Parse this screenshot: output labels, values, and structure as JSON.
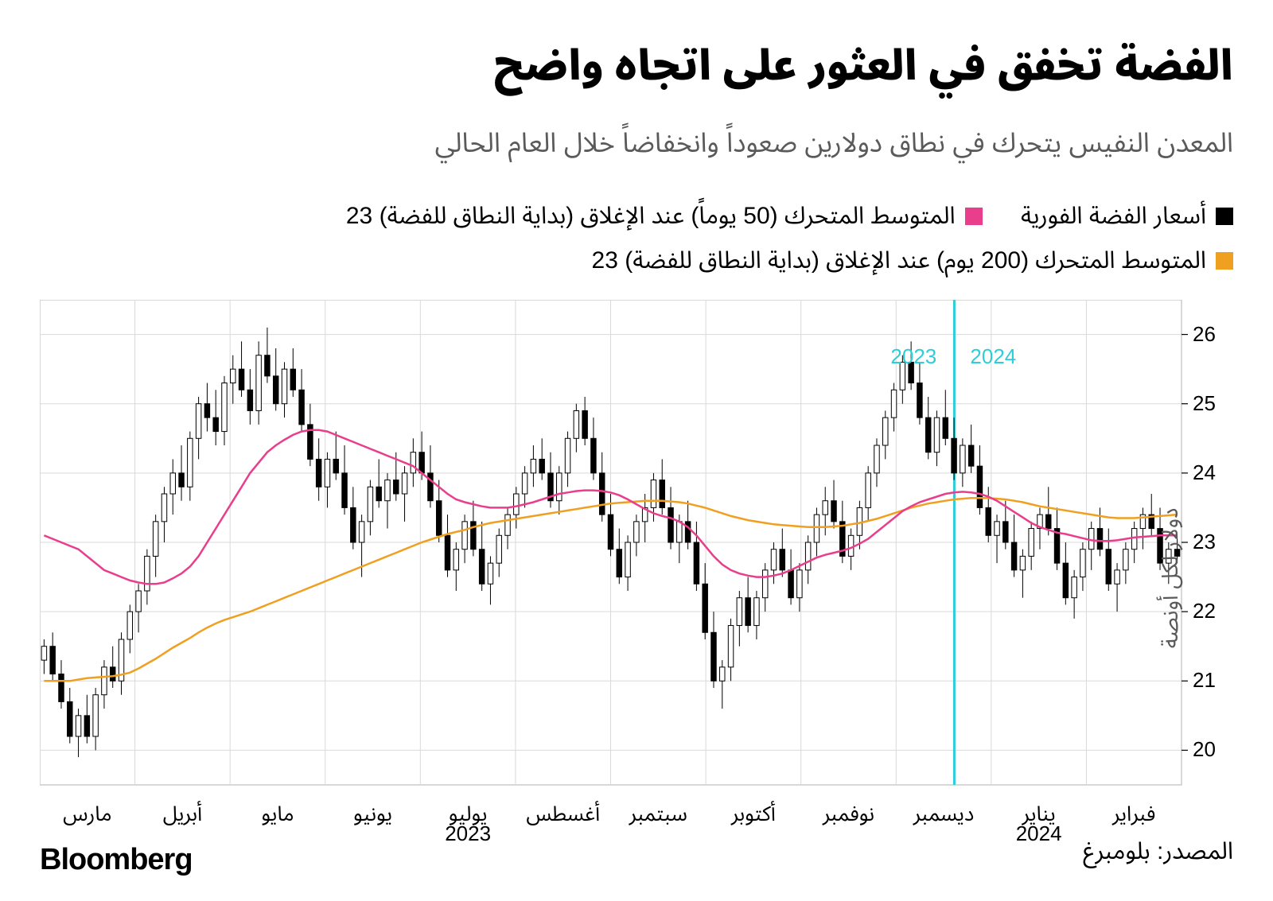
{
  "title": "الفضة تخفق في العثور على اتجاه واضح",
  "subtitle": "المعدن النفيس يتحرك في نطاق دولارين صعوداً وانخفاضاً خلال العام الحالي",
  "legend": {
    "spot": {
      "label": "أسعار الفضة الفورية",
      "color": "#000000"
    },
    "ma50": {
      "label": "المتوسط المتحرك (50 يوماً) عند الإغلاق (بداية النطاق للفضة) 23",
      "color": "#e83e8c"
    },
    "ma200": {
      "label": "المتوسط المتحرك (200 يوم) عند الإغلاق (بداية النطاق للفضة) 23",
      "color": "#f0a020"
    }
  },
  "chart": {
    "type": "candlestick",
    "y_axis": {
      "label": "دولار لكل أونصة",
      "min": 19.5,
      "max": 26.5,
      "ticks": [
        20,
        21,
        22,
        23,
        24,
        25,
        26
      ]
    },
    "x_axis": {
      "months": [
        "مارس",
        "أبريل",
        "مايو",
        "يونيو",
        "يوليو",
        "أغسطس",
        "سبتمبر",
        "أكتوبر",
        "نوفمبر",
        "ديسمبر",
        "يناير",
        "فبراير"
      ],
      "year_labels": {
        "2023": 4,
        "2024": 10
      },
      "year_divider_position": 0.801,
      "year_marker_2023": "2023",
      "year_marker_2024": "2024",
      "year_marker_color": "#2dcdd9"
    },
    "colors": {
      "grid": "#d9d9d9",
      "border": "#bfbfbf",
      "candle": "#000000",
      "ma50": "#e83e8c",
      "ma200": "#f0a020",
      "divider": "#2dcdd9",
      "background": "#ffffff"
    },
    "candles": [
      {
        "o": 21.3,
        "h": 21.6,
        "l": 21.1,
        "c": 21.5
      },
      {
        "o": 21.5,
        "h": 21.7,
        "l": 21.0,
        "c": 21.1
      },
      {
        "o": 21.1,
        "h": 21.3,
        "l": 20.6,
        "c": 20.7
      },
      {
        "o": 20.7,
        "h": 20.9,
        "l": 20.1,
        "c": 20.2
      },
      {
        "o": 20.2,
        "h": 20.6,
        "l": 19.9,
        "c": 20.5
      },
      {
        "o": 20.5,
        "h": 20.8,
        "l": 20.1,
        "c": 20.2
      },
      {
        "o": 20.2,
        "h": 20.9,
        "l": 20.0,
        "c": 20.8
      },
      {
        "o": 20.8,
        "h": 21.3,
        "l": 20.6,
        "c": 21.2
      },
      {
        "o": 21.2,
        "h": 21.5,
        "l": 20.9,
        "c": 21.0
      },
      {
        "o": 21.0,
        "h": 21.7,
        "l": 20.8,
        "c": 21.6
      },
      {
        "o": 21.6,
        "h": 22.1,
        "l": 21.4,
        "c": 22.0
      },
      {
        "o": 22.0,
        "h": 22.4,
        "l": 21.7,
        "c": 22.3
      },
      {
        "o": 22.3,
        "h": 22.9,
        "l": 22.1,
        "c": 22.8
      },
      {
        "o": 22.8,
        "h": 23.4,
        "l": 22.5,
        "c": 23.3
      },
      {
        "o": 23.3,
        "h": 23.8,
        "l": 23.0,
        "c": 23.7
      },
      {
        "o": 23.7,
        "h": 24.2,
        "l": 23.4,
        "c": 24.0
      },
      {
        "o": 24.0,
        "h": 24.4,
        "l": 23.6,
        "c": 23.8
      },
      {
        "o": 23.8,
        "h": 24.6,
        "l": 23.6,
        "c": 24.5
      },
      {
        "o": 24.5,
        "h": 25.1,
        "l": 24.2,
        "c": 25.0
      },
      {
        "o": 25.0,
        "h": 25.3,
        "l": 24.6,
        "c": 24.8
      },
      {
        "o": 24.8,
        "h": 25.2,
        "l": 24.4,
        "c": 24.6
      },
      {
        "o": 24.6,
        "h": 25.4,
        "l": 24.4,
        "c": 25.3
      },
      {
        "o": 25.3,
        "h": 25.7,
        "l": 25.0,
        "c": 25.5
      },
      {
        "o": 25.5,
        "h": 25.9,
        "l": 25.1,
        "c": 25.2
      },
      {
        "o": 25.2,
        "h": 25.5,
        "l": 24.7,
        "c": 24.9
      },
      {
        "o": 24.9,
        "h": 25.9,
        "l": 24.7,
        "c": 25.7
      },
      {
        "o": 25.7,
        "h": 26.1,
        "l": 25.3,
        "c": 25.4
      },
      {
        "o": 25.4,
        "h": 25.8,
        "l": 24.9,
        "c": 25.0
      },
      {
        "o": 25.0,
        "h": 25.6,
        "l": 24.8,
        "c": 25.5
      },
      {
        "o": 25.5,
        "h": 25.8,
        "l": 25.1,
        "c": 25.2
      },
      {
        "o": 25.2,
        "h": 25.5,
        "l": 24.6,
        "c": 24.7
      },
      {
        "o": 24.7,
        "h": 25.0,
        "l": 24.1,
        "c": 24.2
      },
      {
        "o": 24.2,
        "h": 24.5,
        "l": 23.6,
        "c": 23.8
      },
      {
        "o": 23.8,
        "h": 24.3,
        "l": 23.5,
        "c": 24.2
      },
      {
        "o": 24.2,
        "h": 24.6,
        "l": 23.9,
        "c": 24.0
      },
      {
        "o": 24.0,
        "h": 24.4,
        "l": 23.4,
        "c": 23.5
      },
      {
        "o": 23.5,
        "h": 23.8,
        "l": 22.9,
        "c": 23.0
      },
      {
        "o": 23.0,
        "h": 23.4,
        "l": 22.5,
        "c": 23.3
      },
      {
        "o": 23.3,
        "h": 23.9,
        "l": 23.1,
        "c": 23.8
      },
      {
        "o": 23.8,
        "h": 24.2,
        "l": 23.5,
        "c": 23.6
      },
      {
        "o": 23.6,
        "h": 24.0,
        "l": 23.2,
        "c": 23.9
      },
      {
        "o": 23.9,
        "h": 24.3,
        "l": 23.6,
        "c": 23.7
      },
      {
        "o": 23.7,
        "h": 24.1,
        "l": 23.3,
        "c": 24.0
      },
      {
        "o": 24.0,
        "h": 24.5,
        "l": 23.8,
        "c": 24.3
      },
      {
        "o": 24.3,
        "h": 24.6,
        "l": 23.9,
        "c": 24.0
      },
      {
        "o": 24.0,
        "h": 24.4,
        "l": 23.5,
        "c": 23.6
      },
      {
        "o": 23.6,
        "h": 23.9,
        "l": 23.0,
        "c": 23.1
      },
      {
        "o": 23.1,
        "h": 23.4,
        "l": 22.5,
        "c": 22.6
      },
      {
        "o": 22.6,
        "h": 23.0,
        "l": 22.3,
        "c": 22.9
      },
      {
        "o": 22.9,
        "h": 23.4,
        "l": 22.7,
        "c": 23.3
      },
      {
        "o": 23.3,
        "h": 23.6,
        "l": 22.8,
        "c": 22.9
      },
      {
        "o": 22.9,
        "h": 23.3,
        "l": 22.3,
        "c": 22.4
      },
      {
        "o": 22.4,
        "h": 22.8,
        "l": 22.1,
        "c": 22.7
      },
      {
        "o": 22.7,
        "h": 23.2,
        "l": 22.5,
        "c": 23.1
      },
      {
        "o": 23.1,
        "h": 23.5,
        "l": 22.9,
        "c": 23.4
      },
      {
        "o": 23.4,
        "h": 23.8,
        "l": 23.2,
        "c": 23.7
      },
      {
        "o": 23.7,
        "h": 24.1,
        "l": 23.5,
        "c": 24.0
      },
      {
        "o": 24.0,
        "h": 24.4,
        "l": 23.8,
        "c": 24.2
      },
      {
        "o": 24.2,
        "h": 24.5,
        "l": 23.9,
        "c": 24.0
      },
      {
        "o": 24.0,
        "h": 24.3,
        "l": 23.5,
        "c": 23.6
      },
      {
        "o": 23.6,
        "h": 24.1,
        "l": 23.4,
        "c": 24.0
      },
      {
        "o": 24.0,
        "h": 24.6,
        "l": 23.8,
        "c": 24.5
      },
      {
        "o": 24.5,
        "h": 25.0,
        "l": 24.3,
        "c": 24.9
      },
      {
        "o": 24.9,
        "h": 25.1,
        "l": 24.4,
        "c": 24.5
      },
      {
        "o": 24.5,
        "h": 24.8,
        "l": 23.9,
        "c": 24.0
      },
      {
        "o": 24.0,
        "h": 24.3,
        "l": 23.3,
        "c": 23.4
      },
      {
        "o": 23.4,
        "h": 23.7,
        "l": 22.8,
        "c": 22.9
      },
      {
        "o": 22.9,
        "h": 23.2,
        "l": 22.4,
        "c": 22.5
      },
      {
        "o": 22.5,
        "h": 23.1,
        "l": 22.3,
        "c": 23.0
      },
      {
        "o": 23.0,
        "h": 23.4,
        "l": 22.8,
        "c": 23.3
      },
      {
        "o": 23.3,
        "h": 23.7,
        "l": 23.0,
        "c": 23.5
      },
      {
        "o": 23.5,
        "h": 24.0,
        "l": 23.3,
        "c": 23.9
      },
      {
        "o": 23.9,
        "h": 24.2,
        "l": 23.4,
        "c": 23.5
      },
      {
        "o": 23.5,
        "h": 23.8,
        "l": 22.9,
        "c": 23.0
      },
      {
        "o": 23.0,
        "h": 23.4,
        "l": 22.7,
        "c": 23.3
      },
      {
        "o": 23.3,
        "h": 23.6,
        "l": 22.9,
        "c": 23.0
      },
      {
        "o": 23.0,
        "h": 23.3,
        "l": 22.3,
        "c": 22.4
      },
      {
        "o": 22.4,
        "h": 22.7,
        "l": 21.6,
        "c": 21.7
      },
      {
        "o": 21.7,
        "h": 22.0,
        "l": 20.9,
        "c": 21.0
      },
      {
        "o": 21.0,
        "h": 21.3,
        "l": 20.6,
        "c": 21.2
      },
      {
        "o": 21.2,
        "h": 21.9,
        "l": 21.0,
        "c": 21.8
      },
      {
        "o": 21.8,
        "h": 22.3,
        "l": 21.5,
        "c": 22.2
      },
      {
        "o": 22.2,
        "h": 22.5,
        "l": 21.7,
        "c": 21.8
      },
      {
        "o": 21.8,
        "h": 22.3,
        "l": 21.6,
        "c": 22.2
      },
      {
        "o": 22.2,
        "h": 22.7,
        "l": 22.0,
        "c": 22.6
      },
      {
        "o": 22.6,
        "h": 23.0,
        "l": 22.4,
        "c": 22.9
      },
      {
        "o": 22.9,
        "h": 23.2,
        "l": 22.5,
        "c": 22.6
      },
      {
        "o": 22.6,
        "h": 22.9,
        "l": 22.1,
        "c": 22.2
      },
      {
        "o": 22.2,
        "h": 22.7,
        "l": 22.0,
        "c": 22.6
      },
      {
        "o": 22.6,
        "h": 23.1,
        "l": 22.4,
        "c": 23.0
      },
      {
        "o": 23.0,
        "h": 23.5,
        "l": 22.8,
        "c": 23.4
      },
      {
        "o": 23.4,
        "h": 23.8,
        "l": 23.1,
        "c": 23.6
      },
      {
        "o": 23.6,
        "h": 23.9,
        "l": 23.2,
        "c": 23.3
      },
      {
        "o": 23.3,
        "h": 23.6,
        "l": 22.7,
        "c": 22.8
      },
      {
        "o": 22.8,
        "h": 23.2,
        "l": 22.6,
        "c": 23.1
      },
      {
        "o": 23.1,
        "h": 23.6,
        "l": 22.9,
        "c": 23.5
      },
      {
        "o": 23.5,
        "h": 24.1,
        "l": 23.3,
        "c": 24.0
      },
      {
        "o": 24.0,
        "h": 24.5,
        "l": 23.8,
        "c": 24.4
      },
      {
        "o": 24.4,
        "h": 24.9,
        "l": 24.2,
        "c": 24.8
      },
      {
        "o": 24.8,
        "h": 25.3,
        "l": 24.6,
        "c": 25.2
      },
      {
        "o": 25.2,
        "h": 25.7,
        "l": 25.0,
        "c": 25.6
      },
      {
        "o": 25.6,
        "h": 25.9,
        "l": 25.2,
        "c": 25.3
      },
      {
        "o": 25.3,
        "h": 25.6,
        "l": 24.7,
        "c": 24.8
      },
      {
        "o": 24.8,
        "h": 25.1,
        "l": 24.2,
        "c": 24.3
      },
      {
        "o": 24.3,
        "h": 24.9,
        "l": 24.1,
        "c": 24.8
      },
      {
        "o": 24.8,
        "h": 25.2,
        "l": 24.4,
        "c": 24.5
      },
      {
        "o": 24.5,
        "h": 24.8,
        "l": 23.9,
        "c": 24.0
      },
      {
        "o": 24.0,
        "h": 24.5,
        "l": 23.8,
        "c": 24.4
      },
      {
        "o": 24.4,
        "h": 24.7,
        "l": 24.0,
        "c": 24.1
      },
      {
        "o": 24.1,
        "h": 24.4,
        "l": 23.4,
        "c": 23.5
      },
      {
        "o": 23.5,
        "h": 23.8,
        "l": 23.0,
        "c": 23.1
      },
      {
        "o": 23.1,
        "h": 23.4,
        "l": 22.7,
        "c": 23.3
      },
      {
        "o": 23.3,
        "h": 23.6,
        "l": 22.9,
        "c": 23.0
      },
      {
        "o": 23.0,
        "h": 23.4,
        "l": 22.5,
        "c": 22.6
      },
      {
        "o": 22.6,
        "h": 22.9,
        "l": 22.2,
        "c": 22.8
      },
      {
        "o": 22.8,
        "h": 23.3,
        "l": 22.6,
        "c": 23.2
      },
      {
        "o": 23.2,
        "h": 23.5,
        "l": 22.9,
        "c": 23.4
      },
      {
        "o": 23.4,
        "h": 23.8,
        "l": 23.1,
        "c": 23.2
      },
      {
        "o": 23.2,
        "h": 23.5,
        "l": 22.6,
        "c": 22.7
      },
      {
        "o": 22.7,
        "h": 23.0,
        "l": 22.1,
        "c": 22.2
      },
      {
        "o": 22.2,
        "h": 22.6,
        "l": 21.9,
        "c": 22.5
      },
      {
        "o": 22.5,
        "h": 23.0,
        "l": 22.3,
        "c": 22.9
      },
      {
        "o": 22.9,
        "h": 23.3,
        "l": 22.6,
        "c": 23.2
      },
      {
        "o": 23.2,
        "h": 23.5,
        "l": 22.8,
        "c": 22.9
      },
      {
        "o": 22.9,
        "h": 23.2,
        "l": 22.3,
        "c": 22.4
      },
      {
        "o": 22.4,
        "h": 22.7,
        "l": 22.0,
        "c": 22.6
      },
      {
        "o": 22.6,
        "h": 23.0,
        "l": 22.4,
        "c": 22.9
      },
      {
        "o": 22.9,
        "h": 23.3,
        "l": 22.7,
        "c": 23.2
      },
      {
        "o": 23.2,
        "h": 23.5,
        "l": 22.9,
        "c": 23.4
      },
      {
        "o": 23.4,
        "h": 23.7,
        "l": 23.1,
        "c": 23.2
      },
      {
        "o": 23.2,
        "h": 23.5,
        "l": 22.6,
        "c": 22.7
      },
      {
        "o": 22.7,
        "h": 23.0,
        "l": 22.4,
        "c": 22.9
      },
      {
        "o": 22.9,
        "h": 23.1,
        "l": 22.7,
        "c": 22.8
      }
    ],
    "ma50": [
      23.1,
      23.05,
      23.0,
      22.95,
      22.9,
      22.8,
      22.7,
      22.6,
      22.55,
      22.5,
      22.45,
      22.42,
      22.4,
      22.4,
      22.42,
      22.48,
      22.55,
      22.65,
      22.8,
      23.0,
      23.2,
      23.4,
      23.6,
      23.8,
      24.0,
      24.15,
      24.3,
      24.4,
      24.48,
      24.55,
      24.6,
      24.62,
      24.62,
      24.6,
      24.55,
      24.5,
      24.45,
      24.4,
      24.35,
      24.3,
      24.25,
      24.2,
      24.15,
      24.1,
      24.0,
      23.9,
      23.8,
      23.7,
      23.62,
      23.58,
      23.55,
      23.52,
      23.5,
      23.5,
      23.5,
      23.52,
      23.55,
      23.58,
      23.62,
      23.66,
      23.7,
      23.72,
      23.74,
      23.75,
      23.75,
      23.74,
      23.72,
      23.68,
      23.62,
      23.55,
      23.48,
      23.42,
      23.38,
      23.35,
      23.3,
      23.22,
      23.1,
      22.95,
      22.8,
      22.68,
      22.6,
      22.55,
      22.52,
      22.5,
      22.5,
      22.52,
      22.55,
      22.6,
      22.66,
      22.72,
      22.78,
      22.82,
      22.85,
      22.88,
      22.92,
      22.98,
      23.05,
      23.15,
      23.25,
      23.35,
      23.45,
      23.52,
      23.58,
      23.62,
      23.66,
      23.7,
      23.72,
      23.73,
      23.72,
      23.7,
      23.66,
      23.6,
      23.52,
      23.44,
      23.36,
      23.28,
      23.22,
      23.18,
      23.14,
      23.12,
      23.09,
      23.06,
      23.03,
      23.02,
      23.02,
      23.03,
      23.05,
      23.07,
      23.08,
      23.09,
      23.1,
      23.1,
      23.1
    ],
    "ma200": [
      21.0,
      21.0,
      21.0,
      21.0,
      21.02,
      21.04,
      21.05,
      21.06,
      21.07,
      21.09,
      21.12,
      21.18,
      21.25,
      21.32,
      21.4,
      21.48,
      21.55,
      21.62,
      21.7,
      21.77,
      21.83,
      21.88,
      21.92,
      21.96,
      22.0,
      22.05,
      22.1,
      22.15,
      22.2,
      22.25,
      22.3,
      22.35,
      22.4,
      22.45,
      22.5,
      22.55,
      22.6,
      22.65,
      22.7,
      22.75,
      22.8,
      22.85,
      22.9,
      22.95,
      23.0,
      23.04,
      23.08,
      23.12,
      23.15,
      23.18,
      23.22,
      23.25,
      23.28,
      23.3,
      23.32,
      23.34,
      23.36,
      23.38,
      23.4,
      23.42,
      23.44,
      23.46,
      23.48,
      23.5,
      23.52,
      23.54,
      23.56,
      23.57,
      23.58,
      23.59,
      23.6,
      23.6,
      23.6,
      23.59,
      23.58,
      23.56,
      23.53,
      23.5,
      23.46,
      23.42,
      23.38,
      23.35,
      23.32,
      23.3,
      23.28,
      23.26,
      23.25,
      23.24,
      23.23,
      23.22,
      23.22,
      23.22,
      23.23,
      23.24,
      23.26,
      23.28,
      23.31,
      23.34,
      23.38,
      23.42,
      23.46,
      23.5,
      23.53,
      23.56,
      23.58,
      23.6,
      23.62,
      23.63,
      23.64,
      23.64,
      23.64,
      23.63,
      23.62,
      23.6,
      23.58,
      23.55,
      23.52,
      23.5,
      23.48,
      23.46,
      23.44,
      23.42,
      23.4,
      23.38,
      23.36,
      23.35,
      23.35,
      23.35,
      23.36,
      23.37,
      23.38,
      23.39,
      23.4
    ]
  },
  "footer": {
    "brand": "Bloomberg",
    "source": "المصدر: بلومبرغ"
  }
}
